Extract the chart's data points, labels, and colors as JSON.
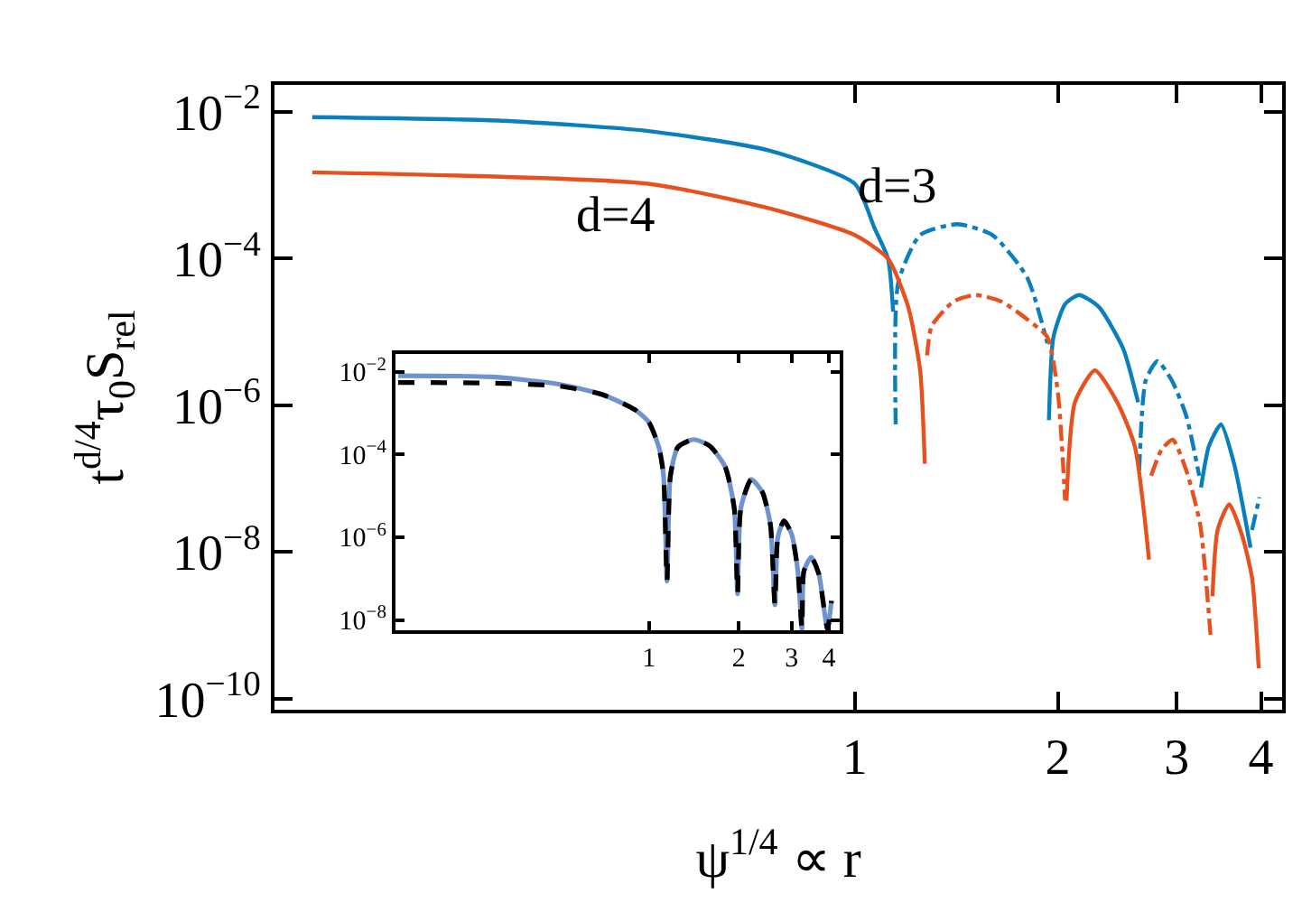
{
  "chart_data": [
    {
      "type": "line",
      "xlabel": "ψ$^{1/4}$ ∝ r",
      "ylabel": "t$^{d/4}$τ$_{0}$S$_{rel}$",
      "log": "xy",
      "xlim": [
        0.138,
        4.3
      ],
      "xticks": [
        1,
        2,
        3,
        4
      ],
      "ylim": [
        7.1e-11,
        0.0234
      ],
      "yticks": [
        {
          "value": 0.01,
          "label": "10$^{−2}$"
        },
        {
          "value": 0.0001,
          "label": "10$^{−4}$"
        },
        {
          "value": 1e-06,
          "label": "10$^{−6}$"
        },
        {
          "value": 1e-08,
          "label": "10$^{−8}$"
        },
        {
          "value": 1e-10,
          "label": "10$^{−10}$"
        }
      ],
      "grid": false,
      "legend": false,
      "marker": "none",
      "series": [
        {
          "color": "#0a7fbf",
          "line_style": "solid",
          "x": [
            0.157,
            0.3,
            0.494,
            0.744,
            1.0,
            1.07,
            1.12,
            1.14,
            1.5,
            1.94,
            1.97,
            2.05,
            2.15,
            2.3,
            2.5,
            2.63,
            3.0,
            3.26,
            3.35,
            3.49,
            3.65,
            3.86
          ],
          "values": [
            0.0085,
            0.0076,
            0.0055,
            0.003,
            0.00105,
            0.00026,
            0.0001,
            1.9e-05,
            null,
            6.3e-07,
            8.5e-06,
            2.4e-05,
            3.2e-05,
            2.2e-05,
            5.9e-06,
            1.1e-06,
            null,
            7.6e-08,
            2.8e-07,
            5.5e-07,
            1.6e-07,
            1.15e-08
          ]
        },
        {
          "color": "#0a7fbf",
          "line_style": "dashdot",
          "x": [
            1.15,
            1.16,
            1.25,
            1.42,
            1.6,
            1.8,
            1.93,
            2.3,
            2.64,
            2.7,
            2.81,
            2.95,
            3.1,
            3.24,
            3.6,
            3.88,
            3.98
          ],
          "values": [
            5.5e-07,
            4.7e-05,
            0.00021,
            0.000295,
            0.00021,
            5.6e-05,
            7e-06,
            null,
            1.3e-07,
            2.2e-06,
            4e-06,
            2.2e-06,
            7.2e-07,
            1.1e-07,
            null,
            2e-08,
            5.6e-08
          ]
        },
        {
          "color": "#e8501e",
          "line_style": "solid",
          "x": [
            0.157,
            0.494,
            0.744,
            1.0,
            1.12,
            1.2,
            1.25,
            1.27,
            1.7,
            2.06,
            2.12,
            2.27,
            2.45,
            2.6,
            2.73,
            3.0,
            3.39,
            3.45,
            3.59,
            3.75,
            3.88,
            3.97
          ],
          "values": [
            0.0015,
            0.00105,
            0.00049,
            0.00021,
            0.0001,
            2.2e-05,
            3e-06,
            1.6e-07,
            null,
            5e-08,
            1.1e-06,
            3e-06,
            1.1e-06,
            2.8e-07,
            7.9e-09,
            null,
            2.5e-09,
            2e-08,
            4.5e-08,
            1.7e-08,
            4.5e-09,
            2.6e-10
          ]
        },
        {
          "color": "#e8501e",
          "line_style": "dashdot",
          "x": [
            1.28,
            1.3,
            1.4,
            1.51,
            1.65,
            1.8,
            1.93,
            2.0,
            2.05,
            2.4,
            2.75,
            2.85,
            2.96,
            3.1,
            3.25,
            3.37
          ],
          "values": [
            4.8e-06,
            1.2e-05,
            2.6e-05,
            3.2e-05,
            2.6e-05,
            1.5e-05,
            8.5e-06,
            1.5e-06,
            5.1e-08,
            null,
            1.1e-07,
            2.5e-07,
            3.4e-07,
            1.3e-07,
            2.4e-08,
            6.8e-10
          ]
        }
      ],
      "annotations": [
        "d=3",
        "d=4"
      ]
    },
    {
      "type": "line",
      "log": "xy",
      "xlim": [
        0.142,
        4.35
      ],
      "xticks": [
        1,
        2,
        3,
        4
      ],
      "ylim": [
        5.6e-09,
        0.0275
      ],
      "yticks": [
        {
          "value": 0.01,
          "label": "10$^{−2}$"
        },
        {
          "value": 0.0001,
          "label": "10$^{−4}$"
        },
        {
          "value": 1e-06,
          "label": "10$^{−6}$"
        },
        {
          "value": 1e-08,
          "label": "10$^{−8}$"
        }
      ],
      "grid": false,
      "legend": false,
      "marker": "none",
      "x": [
        0.145,
        0.3,
        0.5,
        0.7,
        0.9,
        1.0,
        1.08,
        1.12,
        1.15,
        1.18,
        1.25,
        1.41,
        1.6,
        1.8,
        1.93,
        1.98,
        2.03,
        2.2,
        2.4,
        2.55,
        2.64,
        2.7,
        2.83,
        3.0,
        3.15,
        3.25,
        3.3,
        3.49,
        3.7,
        3.9,
        3.96,
        4.08
      ],
      "series": [
        {
          "color": "#6f93cf",
          "line_style": "solid",
          "values": [
            0.008,
            0.0075,
            0.005,
            0.0028,
            0.0012,
            0.0006,
            0.00015,
            3e-05,
            8.7e-08,
            3e-05,
            0.00015,
            0.00023,
            0.00016,
            5e-05,
            5e-06,
            4.3e-08,
            5e-06,
            2.5e-05,
            1.2e-05,
            2e-06,
            2.3e-08,
            1e-06,
            2.5e-06,
            1.2e-06,
            1.5e-07,
            6e-09,
            1.5e-07,
            3.3e-07,
            1.3e-07,
            1e-08,
            6e-09,
            2.9e-08
          ]
        },
        {
          "color": "#000000",
          "line_style": "dashed",
          "values": [
            0.0055,
            0.0053,
            0.0045,
            0.0028,
            0.0012,
            0.0006,
            0.00015,
            3e-05,
            8.7e-08,
            3e-05,
            0.00015,
            0.00023,
            0.00016,
            5e-05,
            5e-06,
            4.3e-08,
            5e-06,
            2.5e-05,
            1.2e-05,
            2e-06,
            2.3e-08,
            1e-06,
            2.5e-06,
            1.2e-06,
            1.5e-07,
            6e-09,
            1.5e-07,
            3.3e-07,
            1.3e-07,
            1e-08,
            6e-09,
            2.9e-08
          ]
        }
      ]
    }
  ]
}
